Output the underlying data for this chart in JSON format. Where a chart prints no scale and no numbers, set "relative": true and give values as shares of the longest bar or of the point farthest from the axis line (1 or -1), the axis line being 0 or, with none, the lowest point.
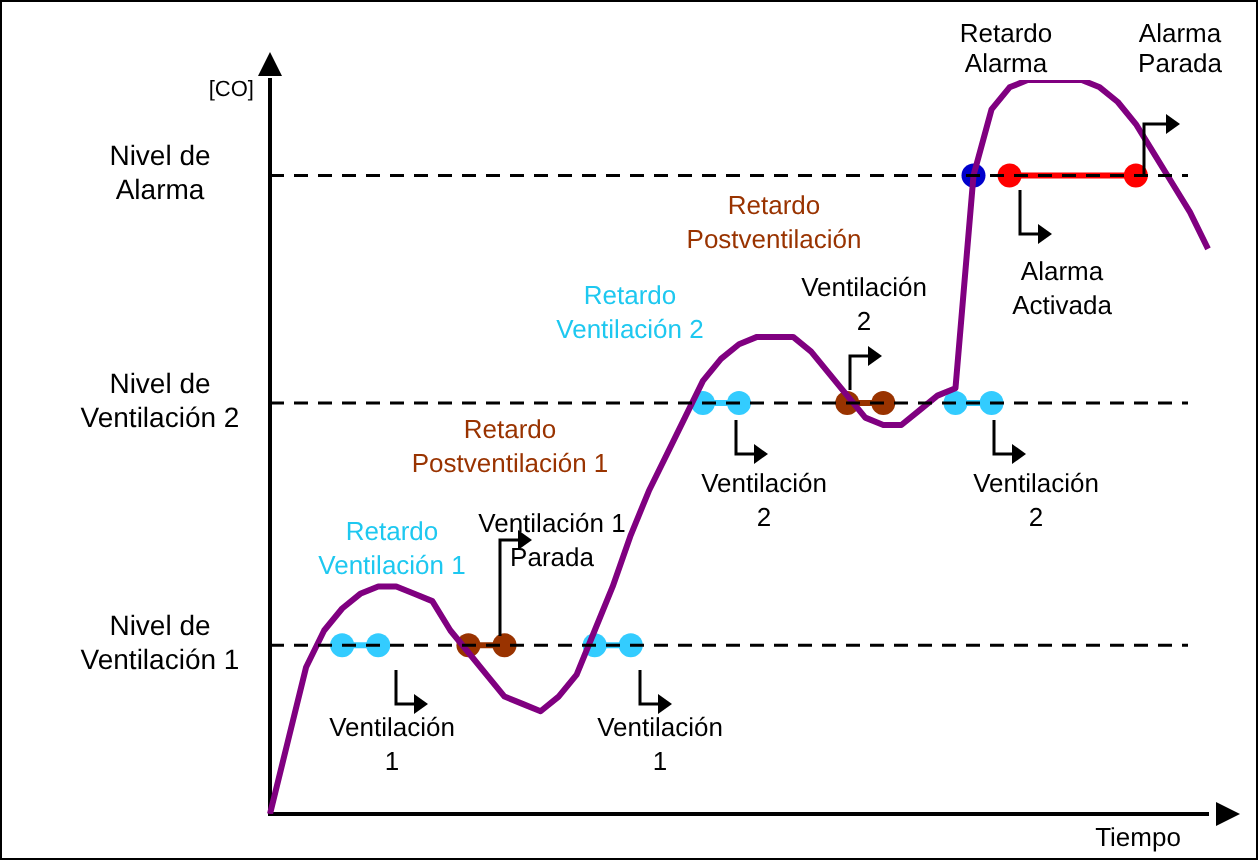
{
  "chart_data": {
    "type": "line",
    "relative": true,
    "ylabel": "[CO]",
    "xlabel": "Tiempo",
    "legend": false,
    "grid": false,
    "marker": "none",
    "categories": [
      null,
      null,
      null,
      null,
      null,
      null,
      null,
      null,
      null,
      null,
      null,
      null,
      null,
      null,
      null,
      null,
      null,
      null,
      null,
      null,
      null,
      null,
      null,
      null,
      null,
      null,
      null,
      null,
      null,
      null,
      null,
      null,
      null,
      null,
      null,
      null,
      null,
      null,
      null,
      null,
      null,
      null,
      null,
      null,
      null,
      null,
      null,
      null,
      null,
      null,
      null,
      null,
      null
    ],
    "series": [
      {
        "type": "line",
        "color": "#800080",
        "values": [
          0.0,
          0.1,
          0.2,
          0.25,
          0.28,
          0.3,
          0.31,
          0.31,
          0.3,
          0.29,
          0.25,
          0.22,
          0.19,
          0.16,
          0.15,
          0.14,
          0.16,
          0.19,
          0.25,
          0.31,
          0.38,
          0.44,
          0.49,
          0.54,
          0.59,
          0.62,
          0.64,
          0.65,
          0.65,
          0.65,
          0.63,
          0.6,
          0.57,
          0.54,
          0.53,
          0.53,
          0.55,
          0.57,
          0.58,
          0.87,
          0.96,
          0.99,
          1.0,
          1.0,
          1.0,
          1.0,
          0.99,
          0.97,
          0.94,
          0.9,
          0.86,
          0.82,
          0.77
        ]
      },
      {
        "type": "line",
        "marker": "circle",
        "color": "#33ccff",
        "values": [
          null,
          null,
          null,
          null,
          0.23,
          null,
          0.23,
          null,
          null,
          null,
          null,
          null,
          null,
          null,
          null,
          null,
          null,
          null,
          null,
          null,
          null,
          null,
          null,
          null,
          null,
          null,
          null,
          null,
          null,
          null,
          null,
          null,
          null,
          null,
          null,
          null,
          null,
          null,
          null,
          null,
          null,
          null,
          null,
          null,
          null,
          null,
          null,
          null,
          null,
          null,
          null,
          null,
          null
        ]
      },
      {
        "type": "line",
        "marker": "circle",
        "color": "#33ccff",
        "values": [
          null,
          null,
          null,
          null,
          null,
          null,
          null,
          null,
          null,
          null,
          null,
          null,
          null,
          null,
          null,
          null,
          null,
          null,
          0.23,
          null,
          0.23,
          null,
          null,
          null,
          null,
          null,
          null,
          null,
          null,
          null,
          null,
          null,
          null,
          null,
          null,
          null,
          null,
          null,
          null,
          null,
          null,
          null,
          null,
          null,
          null,
          null,
          null,
          null,
          null,
          null,
          null,
          null,
          null
        ]
      },
      {
        "type": "line",
        "marker": "circle",
        "color": "#33ccff",
        "values": [
          null,
          null,
          null,
          null,
          null,
          null,
          null,
          null,
          null,
          null,
          null,
          null,
          null,
          null,
          null,
          null,
          null,
          null,
          null,
          null,
          null,
          null,
          null,
          null,
          0.56,
          null,
          0.56,
          null,
          null,
          null,
          null,
          null,
          null,
          null,
          null,
          null,
          null,
          null,
          null,
          null,
          null,
          null,
          null,
          null,
          null,
          null,
          null,
          null,
          null,
          null,
          null,
          null,
          null
        ]
      },
      {
        "type": "line",
        "marker": "circle",
        "color": "#33ccff",
        "values": [
          null,
          null,
          null,
          null,
          null,
          null,
          null,
          null,
          null,
          null,
          null,
          null,
          null,
          null,
          null,
          null,
          null,
          null,
          null,
          null,
          null,
          null,
          null,
          null,
          null,
          null,
          null,
          null,
          null,
          null,
          null,
          null,
          null,
          null,
          null,
          null,
          null,
          null,
          0.56,
          null,
          0.56,
          null,
          null,
          null,
          null,
          null,
          null,
          null,
          null,
          null,
          null,
          null,
          null
        ]
      },
      {
        "type": "line",
        "marker": "circle",
        "color": "#993300",
        "values": [
          null,
          null,
          null,
          null,
          null,
          null,
          null,
          null,
          null,
          null,
          null,
          0.23,
          null,
          0.23,
          null,
          null,
          null,
          null,
          null,
          null,
          null,
          null,
          null,
          null,
          null,
          null,
          null,
          null,
          null,
          null,
          null,
          null,
          null,
          null,
          null,
          null,
          null,
          null,
          null,
          null,
          null,
          null,
          null,
          null,
          null,
          null,
          null,
          null,
          null,
          null,
          null,
          null,
          null
        ]
      },
      {
        "type": "line",
        "marker": "circle",
        "color": "#993300",
        "values": [
          null,
          null,
          null,
          null,
          null,
          null,
          null,
          null,
          null,
          null,
          null,
          null,
          null,
          null,
          null,
          null,
          null,
          null,
          null,
          null,
          null,
          null,
          null,
          null,
          null,
          null,
          null,
          null,
          null,
          null,
          null,
          null,
          0.56,
          null,
          0.56,
          null,
          null,
          null,
          null,
          null,
          null,
          null,
          null,
          null,
          null,
          null,
          null,
          null,
          null,
          null,
          null,
          null,
          null
        ]
      },
      {
        "type": "line",
        "marker": "circle",
        "color": "#ff0000",
        "values": [
          null,
          null,
          null,
          null,
          null,
          null,
          null,
          null,
          null,
          null,
          null,
          null,
          null,
          null,
          null,
          null,
          null,
          null,
          null,
          null,
          null,
          null,
          null,
          null,
          null,
          null,
          null,
          null,
          null,
          null,
          null,
          null,
          null,
          null,
          null,
          null,
          null,
          null,
          null,
          null,
          null,
          0.87,
          null,
          null,
          null,
          null,
          null,
          null,
          0.87,
          null,
          null,
          null,
          null
        ]
      },
      {
        "type": "line",
        "marker": "circle",
        "color": "#0000cc",
        "values": [
          null,
          null,
          null,
          null,
          null,
          null,
          null,
          null,
          null,
          null,
          null,
          null,
          null,
          null,
          null,
          null,
          null,
          null,
          null,
          null,
          null,
          null,
          null,
          null,
          null,
          null,
          null,
          null,
          null,
          null,
          null,
          null,
          null,
          null,
          null,
          null,
          null,
          null,
          null,
          0.87,
          null,
          null,
          null,
          null,
          null,
          null,
          null,
          null,
          null,
          null,
          null,
          null,
          null
        ]
      }
    ],
    "ref_lines": [
      {
        "axis": "y",
        "value": 0.87,
        "label": "Nivel de Alarma",
        "line_style": "dashed",
        "color": "#000000"
      },
      {
        "axis": "y",
        "value": 0.56,
        "label": "Nivel de Ventilación 2",
        "line_style": "dashed",
        "color": "#000000"
      },
      {
        "axis": "y",
        "value": 0.23,
        "label": "Nivel de Ventilación 1",
        "line_style": "dashed",
        "color": "#000000"
      }
    ],
    "annotations": [
      "Retardo Ventilación 1",
      "Retardo Postventilación 1",
      "Ventilación 1 Parada",
      "Ventilación 1",
      "Ventilación 1",
      "Retardo Ventilación 2",
      "Retardo Postventilación",
      "Ventilación 2",
      "Ventilación 2",
      "Ventilación 2",
      "Retardo Alarma",
      "Alarma Parada",
      "Alarma Activada"
    ]
  }
}
